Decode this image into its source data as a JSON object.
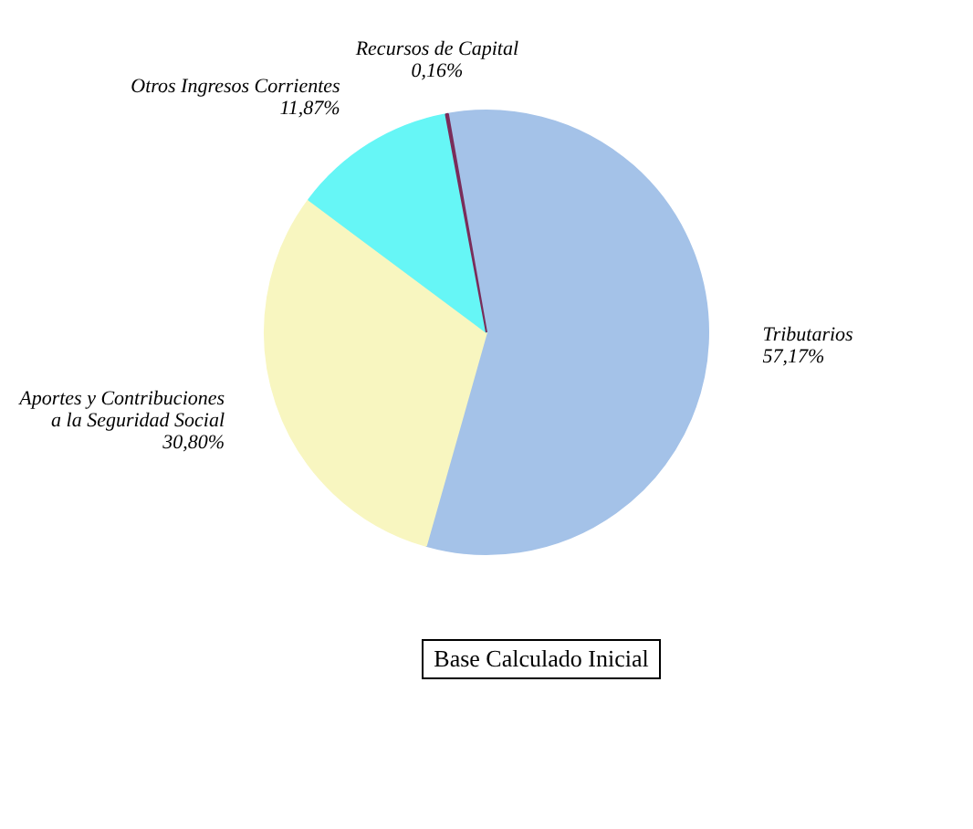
{
  "chart_data": {
    "type": "pie",
    "categories": [
      "Tributarios",
      "Aportes y Contribuciones a la Seguridad Social",
      "Otros Ingresos Corrientes",
      "Recursos de Capital"
    ],
    "values": [
      57.17,
      30.8,
      11.87,
      0.16
    ],
    "colors": [
      "#a4c2e8",
      "#f8f6c0",
      "#66f6f6",
      "#7a2d5a"
    ],
    "value_labels": [
      "57,17%",
      "30,80%",
      "11,87%",
      "0,16%"
    ],
    "annotations": [
      "Base Calculado Inicial"
    ],
    "legend": false
  }
}
